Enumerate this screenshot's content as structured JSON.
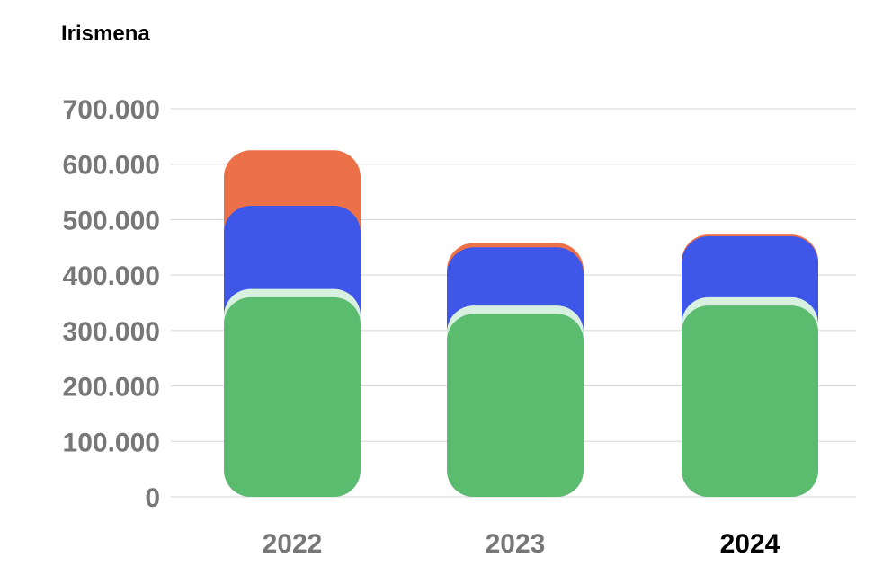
{
  "chart_data": {
    "type": "bar",
    "stacked": true,
    "title": "Irismena",
    "xlabel": "",
    "ylabel": "",
    "categories": [
      "2022",
      "2023",
      "2024"
    ],
    "highlighted_category": "2024",
    "ylim": [
      0,
      700000
    ],
    "yticks": [
      0,
      100000,
      200000,
      300000,
      400000,
      500000,
      600000,
      700000
    ],
    "ytick_labels": [
      "0",
      "100.000",
      "200.000",
      "300.000",
      "400.000",
      "500.000",
      "600.000",
      "700.000"
    ],
    "grid": true,
    "legend": "none",
    "series": [
      {
        "color": "#5bbb6e",
        "values": [
          360000,
          330000,
          345000
        ]
      },
      {
        "color": "#d8f0e0",
        "values": [
          15000,
          15000,
          15000
        ]
      },
      {
        "color": "#3f57e8",
        "values": [
          150000,
          105000,
          110000
        ]
      },
      {
        "color": "#ec7148",
        "values": [
          100000,
          8000,
          3000
        ]
      }
    ]
  }
}
